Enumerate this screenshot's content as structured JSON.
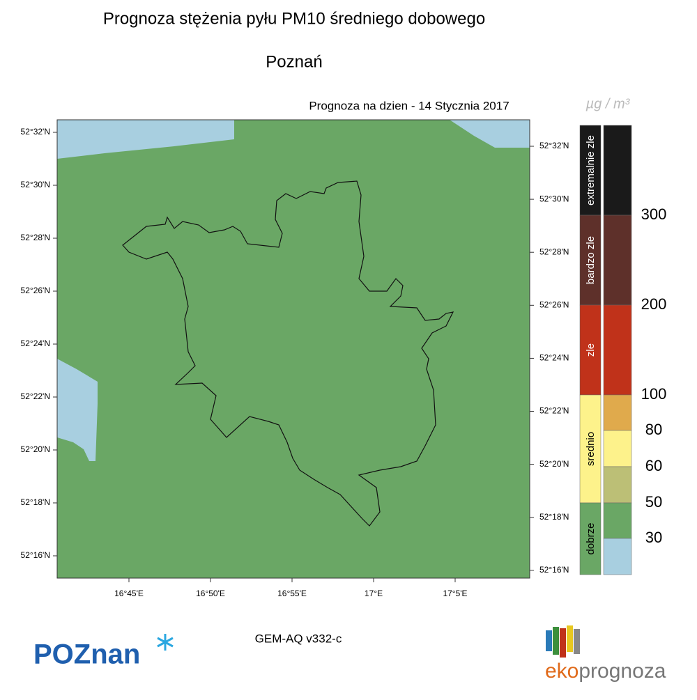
{
  "header": {
    "title": "Prognoza stężenia pyłu PM10 średniego dobowego",
    "city": "Poznań",
    "forecast_date": "Prognoza na dzien -  14 Stycznia 2017"
  },
  "map": {
    "lat_labels_left": [
      "52°32'N",
      "52°30'N",
      "52°28'N",
      "52°26'N",
      "52°24'N",
      "52°22'N",
      "52°20'N",
      "52°18'N",
      "52°16'N"
    ],
    "lat_labels_right": [
      "52°32'N",
      "52°30'N",
      "52°28'N",
      "52°26'N",
      "52°24'N",
      "52°22'N",
      "52°20'N",
      "52°18'N",
      "52°16'N"
    ],
    "lon_labels": [
      "16°45'E",
      "16°50'E",
      "16°55'E",
      "17°E",
      "17°5'E"
    ]
  },
  "legend": {
    "unit": "µg / m³",
    "categories": [
      {
        "label": "extremalnie zle",
        "color": "#1a1a1a"
      },
      {
        "label": "bardzo zle",
        "color": "#5e302a"
      },
      {
        "label": "zle",
        "color": "#c0321a"
      },
      {
        "label": "srednio",
        "color": "#fdf28b"
      },
      {
        "label": "dobrze",
        "color": "#6aa765"
      }
    ],
    "bins": [
      {
        "color": "#1a1a1a"
      },
      {
        "color": "#5e302a"
      },
      {
        "color": "#c0321a"
      },
      {
        "color": "#e0aa4c"
      },
      {
        "color": "#fdf28b"
      },
      {
        "color": "#bcbf76"
      },
      {
        "color": "#6aa765"
      },
      {
        "color": "#a8cfe0"
      }
    ],
    "thresholds": [
      300,
      200,
      100,
      80,
      60,
      50,
      30
    ]
  },
  "footer": {
    "model": "GEM-AQ v332-c",
    "poznan_logo": "POZnan",
    "eko_logo_prefix": "eko",
    "eko_logo_suffix": "prognoza"
  }
}
